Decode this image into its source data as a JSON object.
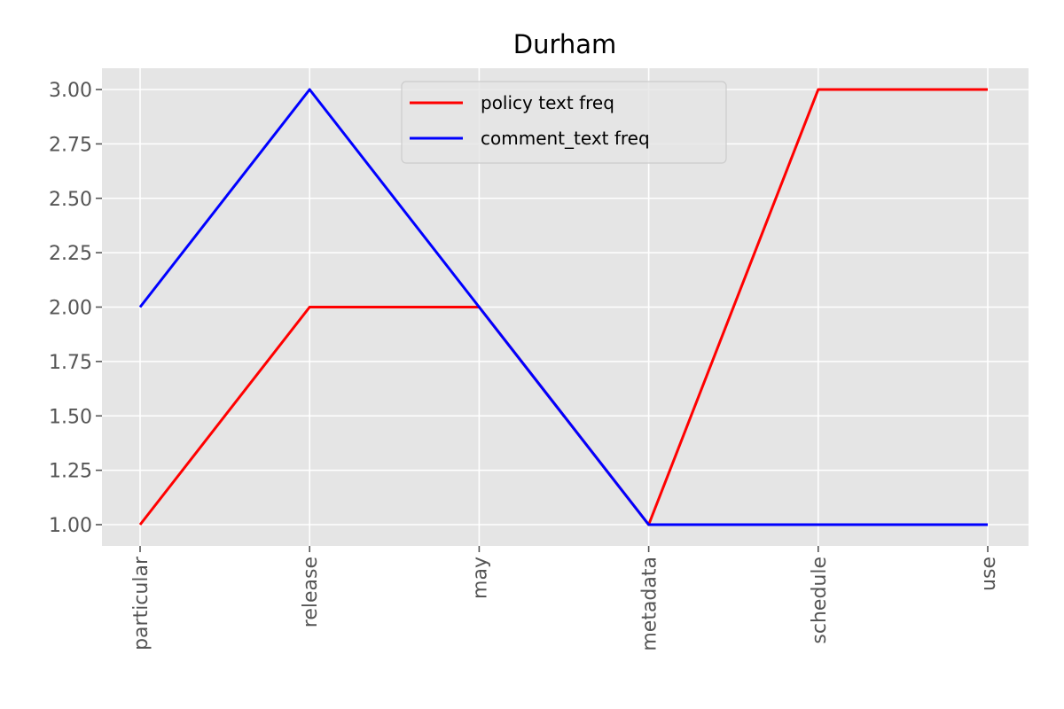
{
  "chart_data": {
    "type": "line",
    "title": "Durham",
    "xlabel": "",
    "ylabel": "",
    "categories": [
      "particular",
      "release",
      "may",
      "metadata",
      "schedule",
      "use"
    ],
    "series": [
      {
        "name": "policy text freq",
        "color": "#ff0000",
        "values": [
          1,
          2,
          2,
          1,
          3,
          3
        ]
      },
      {
        "name": "comment_text freq",
        "color": "#0000ff",
        "values": [
          2,
          3,
          2,
          1,
          1,
          1
        ]
      }
    ],
    "ylim": [
      0.9,
      3.1
    ],
    "yticks": [
      "1.00",
      "1.25",
      "1.50",
      "1.75",
      "2.00",
      "2.25",
      "2.50",
      "2.75",
      "3.00"
    ],
    "grid": true,
    "legend_position": "top-center",
    "background_color": "#e5e5e5",
    "grid_color": "#ffffff"
  }
}
